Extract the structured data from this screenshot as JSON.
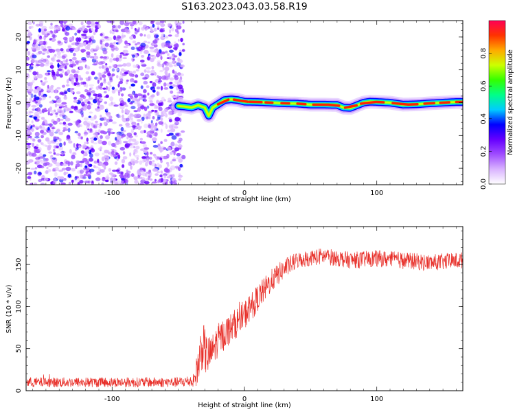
{
  "title": "S163.2023.043.03.58.R19",
  "chart_data": [
    {
      "type": "heatmap",
      "xlabel": "Height of straight line (km)",
      "ylabel": "Frequency (Hz)",
      "xlim": [
        -165,
        165
      ],
      "ylim": [
        -25,
        25
      ],
      "xticks": [
        -100,
        0,
        100
      ],
      "yticks": [
        -20,
        -10,
        0,
        10,
        20
      ],
      "noise_region_x": [
        -165,
        -50
      ],
      "ridge": {
        "x": [
          -50,
          -45,
          -40,
          -35,
          -30,
          -27,
          -24,
          -20,
          -15,
          -10,
          -5,
          0,
          10,
          20,
          30,
          40,
          50,
          60,
          70,
          75,
          80,
          85,
          90,
          95,
          100,
          110,
          120,
          130,
          140,
          150,
          160,
          165
        ],
        "freq": [
          -1.0,
          -1.2,
          -1.5,
          -0.8,
          -1.5,
          -4.0,
          -1.5,
          -0.5,
          0.8,
          1.0,
          0.8,
          0.3,
          0.2,
          0.0,
          -0.2,
          -0.3,
          -0.6,
          -0.6,
          -0.7,
          -1.5,
          -1.6,
          -0.8,
          0.0,
          0.3,
          0.2,
          0.0,
          -0.6,
          -0.5,
          -0.2,
          0.0,
          0.2,
          0.2
        ]
      },
      "colorbar": {
        "label": "Normalized spectral amplitude",
        "range": [
          0,
          1
        ],
        "ticks": [
          0.0,
          0.2,
          0.4,
          0.6,
          0.8
        ],
        "colors": [
          "#ffffff",
          "#d9b3ff",
          "#a04dff",
          "#6600ff",
          "#0000ff",
          "#00ccff",
          "#00ff88",
          "#33ff00",
          "#ccff00",
          "#ffaa00",
          "#ff3300",
          "#ff0055"
        ]
      }
    },
    {
      "type": "line",
      "xlabel": "Height of straight line (km)",
      "ylabel": "SNR (10 * v/v)",
      "xlim": [
        -165,
        165
      ],
      "ylim": [
        0,
        195
      ],
      "xticks": [
        -100,
        0,
        100
      ],
      "yticks": [
        0,
        50,
        100,
        150
      ],
      "series": [
        {
          "color": "#e8302a",
          "trend_x": [
            -165,
            -50,
            -38,
            -35,
            -32,
            -28,
            -25,
            -20,
            -10,
            0,
            10,
            20,
            30,
            40,
            50,
            60,
            80,
            100,
            120,
            140,
            165
          ],
          "trend_y": [
            10,
            10,
            12,
            30,
            55,
            40,
            45,
            60,
            75,
            90,
            110,
            130,
            145,
            155,
            158,
            160,
            155,
            157,
            155,
            152,
            155
          ],
          "noise_amplitude": [
            6,
            6,
            8,
            25,
            30,
            25,
            20,
            20,
            18,
            18,
            16,
            14,
            12,
            10,
            10,
            10,
            10,
            10,
            10,
            10,
            10
          ]
        }
      ]
    }
  ]
}
